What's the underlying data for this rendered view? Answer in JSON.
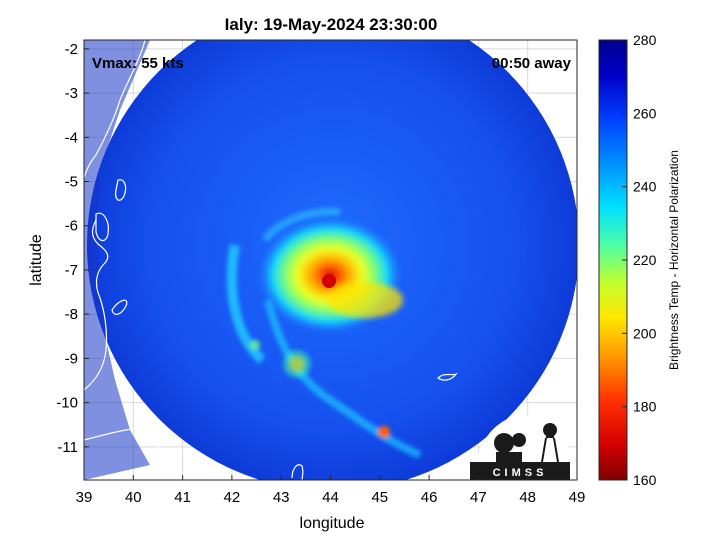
{
  "title": "Ialy: 19-May-2024 23:30:00",
  "vmax_label": "Vmax: 55 kts",
  "time_label": "00:50 away",
  "logo_text": "CIMSS",
  "map": {
    "xlabel": "longitude",
    "ylabel": "latitude",
    "x_ticks": [
      "39",
      "40",
      "41",
      "42",
      "43",
      "44",
      "45",
      "46",
      "47",
      "48",
      "49"
    ],
    "y_ticks": [
      "-2",
      "-3",
      "-4",
      "-5",
      "-6",
      "-7",
      "-8",
      "-9",
      "-10",
      "-11"
    ],
    "xlim": [
      39,
      49
    ],
    "ylim": [
      -11.75,
      -1.8
    ],
    "storm_center": {
      "lon": 44.0,
      "lat": -7.2
    }
  },
  "colorbar": {
    "label": "Brightness Temp - Horizontal Polarization",
    "ticks": [
      "280",
      "260",
      "240",
      "220",
      "200",
      "180",
      "160"
    ],
    "range": [
      160,
      280
    ],
    "colors": [
      "#7f0000",
      "#d40000",
      "#ff3000",
      "#ff9800",
      "#ffe800",
      "#c0ff30",
      "#50ffa0",
      "#00e0ff",
      "#0090ff",
      "#0040ff",
      "#0000c8",
      "#00008f"
    ]
  }
}
